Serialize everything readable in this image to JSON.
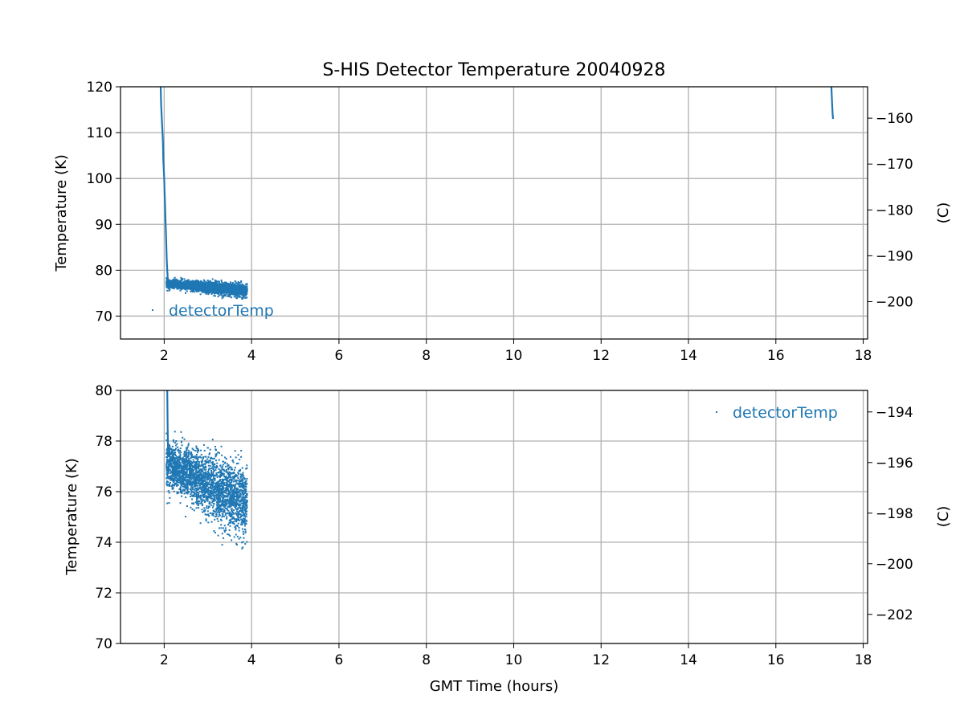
{
  "chart_data": {
    "title": "S-HIS Detector Temperature 20040928",
    "type": "scatter",
    "color": "#1f77b4",
    "panels": [
      {
        "ylabel": "Temperature (K)",
        "xlabel": "",
        "xlim": [
          1.0,
          18.1
        ],
        "ylim": [
          65,
          120
        ],
        "xticks": [
          2,
          4,
          6,
          8,
          10,
          12,
          14,
          16,
          18
        ],
        "yticks": [
          70,
          80,
          90,
          100,
          110,
          120
        ],
        "right_axis": {
          "label": "(C)",
          "ticks": [
            -160,
            -170,
            -180,
            -190,
            -200
          ],
          "tick_labels": [
            "−160",
            "−170",
            "−180",
            "−190",
            "−200"
          ]
        },
        "legend": {
          "label": "detectorTemp",
          "position": "lower-left"
        },
        "grid": true
      },
      {
        "ylabel": "Temperature (K)",
        "xlabel": "GMT Time (hours)",
        "xlim": [
          1.0,
          18.1
        ],
        "ylim": [
          70,
          80
        ],
        "xticks": [
          2,
          4,
          6,
          8,
          10,
          12,
          14,
          16,
          18
        ],
        "yticks": [
          70,
          72,
          74,
          76,
          78,
          80
        ],
        "right_axis": {
          "label": "(C)",
          "ticks": [
            -194,
            -196,
            -198,
            -200,
            -202
          ],
          "tick_labels": [
            "−194",
            "−196",
            "−198",
            "−200",
            "−202"
          ]
        },
        "legend": {
          "label": "detectorTemp",
          "position": "upper-right"
        },
        "grid": true
      }
    ],
    "series": [
      {
        "name": "detectorTemp",
        "marker": "point",
        "segments": [
          {
            "kind": "cooldown",
            "x": [
              1.92,
              1.93,
              1.95,
              1.97,
              1.98,
              2.0,
              2.01,
              2.02,
              2.03,
              2.04,
              2.05,
              2.06,
              2.07,
              2.08,
              2.09
            ],
            "y": [
              120,
              116,
              112,
              108,
              104,
              100,
              97,
              94,
              91,
              88,
              85,
              82,
              80,
              78.5,
              77.5
            ]
          },
          {
            "kind": "scatter_cloud",
            "x_range": [
              2.05,
              3.9
            ],
            "mean_start": 77.1,
            "mean_end": 75.5,
            "spread": 0.55,
            "y_min": 73.5,
            "y_max": 80.0
          },
          {
            "kind": "warmup",
            "x": [
              17.27,
              17.28,
              17.29,
              17.3,
              17.31
            ],
            "y": [
              120,
              118,
              116,
              114,
              113
            ]
          }
        ]
      }
    ]
  }
}
